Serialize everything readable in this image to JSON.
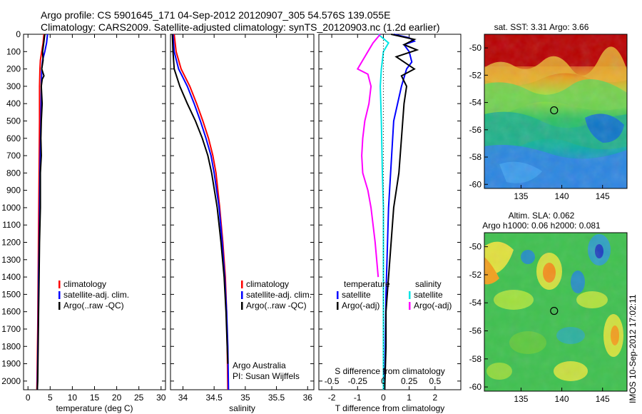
{
  "header": {
    "line1": "Argo profile: CS 5901645_171 04-Sep-2012 20120907_305 54.576S 139.055E",
    "line2": "Climatology: CARS2009. Satellite-adjusted climatology: synTS_20120903.nc (1.2d earlier)"
  },
  "side_stamp": "IMOS 10-Sep-2012 17:02:11",
  "colors": {
    "climatology": "#ff0000",
    "satellite": "#0000ff",
    "argo": "#000000",
    "salinity_sat": "#00e5e5",
    "salinity_argo": "#ff00ff"
  },
  "chart_data": [
    {
      "type": "line",
      "id": "temperature",
      "xlabel": "temperature (deg C)",
      "ylabel": "",
      "xlim": [
        -1,
        31
      ],
      "ylim": [
        0,
        2050
      ],
      "y_reversed": true,
      "xticks": [
        0,
        5,
        10,
        15,
        20,
        25,
        30
      ],
      "yticks": [
        0,
        100,
        200,
        300,
        400,
        500,
        600,
        700,
        800,
        900,
        1000,
        1100,
        1200,
        1300,
        1400,
        1500,
        1600,
        1700,
        1800,
        1900,
        2000
      ],
      "legend": [
        "climatology",
        "satellite-adj. clim.",
        "Argo(..raw -QC)"
      ],
      "legend_position": "lower-center",
      "series": [
        {
          "name": "climatology",
          "color": "#ff0000",
          "points": [
            [
              3.6,
              0
            ],
            [
              3.4,
              50
            ],
            [
              3.1,
              100
            ],
            [
              2.8,
              150
            ],
            [
              2.7,
              200
            ],
            [
              2.6,
              300
            ],
            [
              2.6,
              500
            ],
            [
              2.5,
              800
            ],
            [
              2.4,
              1100
            ],
            [
              2.3,
              1400
            ],
            [
              2.2,
              1700
            ],
            [
              2.0,
              2050
            ]
          ]
        },
        {
          "name": "satellite-adj. clim.",
          "color": "#0000ff",
          "points": [
            [
              4.4,
              0
            ],
            [
              4.2,
              50
            ],
            [
              3.8,
              100
            ],
            [
              3.3,
              150
            ],
            [
              3.1,
              200
            ],
            [
              3.0,
              300
            ],
            [
              2.9,
              500
            ],
            [
              2.7,
              800
            ],
            [
              2.6,
              1100
            ],
            [
              2.4,
              1400
            ],
            [
              2.3,
              1700
            ],
            [
              2.1,
              2050
            ]
          ]
        },
        {
          "name": "Argo(..raw -QC)",
          "color": "#000000",
          "points": [
            [
              3.8,
              0
            ],
            [
              3.6,
              40
            ],
            [
              3.3,
              100
            ],
            [
              3.4,
              150
            ],
            [
              3.1,
              200
            ],
            [
              3.6,
              240
            ],
            [
              3.2,
              260
            ],
            [
              3.0,
              300
            ],
            [
              3.2,
              400
            ],
            [
              3.0,
              500
            ],
            [
              2.9,
              600
            ],
            [
              3.0,
              700
            ],
            [
              2.8,
              800
            ],
            [
              2.8,
              1000
            ],
            [
              2.6,
              1200
            ],
            [
              2.5,
              1400
            ],
            [
              2.4,
              1600
            ],
            [
              2.3,
              1800
            ],
            [
              2.2,
              2000
            ],
            [
              2.1,
              2050
            ]
          ]
        }
      ]
    },
    {
      "type": "line",
      "id": "salinity",
      "xlabel": "salinity",
      "ylabel": "",
      "xlim": [
        33.8,
        36.1
      ],
      "ylim": [
        0,
        2050
      ],
      "y_reversed": true,
      "xticks": [
        34,
        34.5,
        35,
        35.5,
        36
      ],
      "legend": [
        "climatology",
        "satellite-adj. clim.",
        "Argo(..raw -QC)"
      ],
      "legend_position": "lower-right",
      "annotation": [
        "Argo Australia",
        "PI: Susan Wijffels"
      ],
      "series": [
        {
          "name": "climatology",
          "color": "#ff0000",
          "points": [
            [
              33.86,
              0
            ],
            [
              33.89,
              100
            ],
            [
              33.97,
              200
            ],
            [
              34.11,
              300
            ],
            [
              34.22,
              400
            ],
            [
              34.32,
              500
            ],
            [
              34.41,
              600
            ],
            [
              34.48,
              700
            ],
            [
              34.53,
              800
            ],
            [
              34.59,
              1000
            ],
            [
              34.64,
              1200
            ],
            [
              34.68,
              1400
            ],
            [
              34.7,
              1600
            ],
            [
              34.71,
              1800
            ],
            [
              34.72,
              2050
            ]
          ]
        },
        {
          "name": "satellite-adj. clim.",
          "color": "#0000ff",
          "points": [
            [
              33.84,
              0
            ],
            [
              33.86,
              100
            ],
            [
              33.93,
              200
            ],
            [
              34.07,
              300
            ],
            [
              34.18,
              400
            ],
            [
              34.28,
              500
            ],
            [
              34.37,
              600
            ],
            [
              34.45,
              700
            ],
            [
              34.5,
              800
            ],
            [
              34.58,
              1000
            ],
            [
              34.63,
              1200
            ],
            [
              34.67,
              1400
            ],
            [
              34.7,
              1600
            ],
            [
              34.72,
              1800
            ],
            [
              34.73,
              2050
            ]
          ]
        },
        {
          "name": "Argo(..raw -QC)",
          "color": "#000000",
          "points": [
            [
              33.83,
              0
            ],
            [
              33.84,
              100
            ],
            [
              33.86,
              200
            ],
            [
              33.95,
              300
            ],
            [
              34.07,
              400
            ],
            [
              34.2,
              500
            ],
            [
              34.31,
              600
            ],
            [
              34.4,
              700
            ],
            [
              34.46,
              800
            ],
            [
              34.55,
              1000
            ],
            [
              34.61,
              1200
            ],
            [
              34.66,
              1400
            ],
            [
              34.69,
              1600
            ],
            [
              34.71,
              1800
            ],
            [
              34.72,
              1900
            ]
          ]
        }
      ]
    },
    {
      "type": "line",
      "id": "difference",
      "xlabel": "T difference from climatology",
      "x2label": "S difference from climatology",
      "xlim": [
        -2.5,
        3.0
      ],
      "x2lim": [
        -0.625,
        0.75
      ],
      "ylim": [
        0,
        2050
      ],
      "y_reversed": true,
      "xticks": [
        -2,
        -1,
        0,
        1,
        2
      ],
      "x2ticks": [
        -0.5,
        -0.25,
        0,
        0.25,
        0.5
      ],
      "x2ticklabels": [
        "-0.5",
        "-0.25",
        "0",
        "0.25",
        "0.5"
      ],
      "legend": [
        "temperature",
        "satellite",
        "Argo(-adj)",
        "salinity",
        "satellite",
        "Argo(-adj)"
      ],
      "legend_position": "lower-center",
      "series": [
        {
          "name": "satellite",
          "group": "temperature",
          "color": "#0000ff",
          "points": [
            [
              0.4,
              0
            ],
            [
              1.0,
              20
            ],
            [
              1.2,
              40
            ],
            [
              0.8,
              60
            ],
            [
              1.0,
              100
            ],
            [
              1.1,
              160
            ],
            [
              0.9,
              200
            ],
            [
              0.7,
              300
            ],
            [
              0.4,
              500
            ],
            [
              0.2,
              1000
            ],
            [
              0.1,
              1500
            ],
            [
              0.05,
              2050
            ]
          ]
        },
        {
          "name": "Argo(-adj)",
          "group": "temperature",
          "color": "#000000",
          "points": [
            [
              0.3,
              0
            ],
            [
              1.2,
              30
            ],
            [
              0.8,
              60
            ],
            [
              1.3,
              90
            ],
            [
              0.5,
              130
            ],
            [
              1.2,
              200
            ],
            [
              0.7,
              240
            ],
            [
              0.9,
              300
            ],
            [
              0.8,
              400
            ],
            [
              0.7,
              600
            ],
            [
              0.6,
              800
            ],
            [
              0.4,
              1000
            ],
            [
              0.3,
              1200
            ],
            [
              0.2,
              1400
            ],
            [
              0.1,
              1600
            ],
            [
              0.1,
              1800
            ],
            [
              0.05,
              2050
            ]
          ]
        },
        {
          "name": "satellite",
          "group": "salinity",
          "color": "#00e5e5",
          "points": [
            [
              -0.05,
              0
            ],
            [
              0.05,
              50
            ],
            [
              0.0,
              100
            ],
            [
              -0.02,
              200
            ],
            [
              -0.03,
              300
            ],
            [
              -0.02,
              500
            ],
            [
              -0.01,
              800
            ],
            [
              0.0,
              1000
            ],
            [
              0.0,
              1500
            ],
            [
              0.0,
              2050
            ]
          ]
        },
        {
          "name": "Argo(-adj)",
          "group": "salinity",
          "color": "#ff00ff",
          "points": [
            [
              -0.03,
              0
            ],
            [
              -0.1,
              50
            ],
            [
              -0.15,
              100
            ],
            [
              -0.25,
              200
            ],
            [
              -0.15,
              230
            ],
            [
              -0.12,
              300
            ],
            [
              -0.14,
              400
            ],
            [
              -0.18,
              500
            ],
            [
              -0.2,
              600
            ],
            [
              -0.21,
              700
            ],
            [
              -0.2,
              800
            ],
            [
              -0.15,
              900
            ],
            [
              -0.12,
              1000
            ],
            [
              -0.08,
              1200
            ],
            [
              -0.05,
              1400
            ]
          ]
        }
      ]
    },
    {
      "type": "heatmap",
      "id": "sst_map",
      "title": "sat. SST: 3.31  Argo: 3.66",
      "xlim": [
        130.5,
        148
      ],
      "ylim": [
        -60.3,
        -49
      ],
      "xticks": [
        135,
        140,
        145
      ],
      "yticks": [
        -50,
        -52,
        -54,
        -56,
        -58,
        -60
      ],
      "marker": {
        "lon": 139.055,
        "lat": -54.576
      }
    },
    {
      "type": "heatmap",
      "id": "sla_map",
      "title": [
        "Altim. SLA: 0.062",
        "Argo h1000: 0.06 h2000: 0.081"
      ],
      "xlim": [
        130.5,
        148
      ],
      "ylim": [
        -60.3,
        -49
      ],
      "xticks": [
        135,
        140,
        145
      ],
      "yticks": [
        -50,
        -52,
        -54,
        -56,
        -58,
        -60
      ],
      "marker": {
        "lon": 139.055,
        "lat": -54.576
      }
    }
  ]
}
